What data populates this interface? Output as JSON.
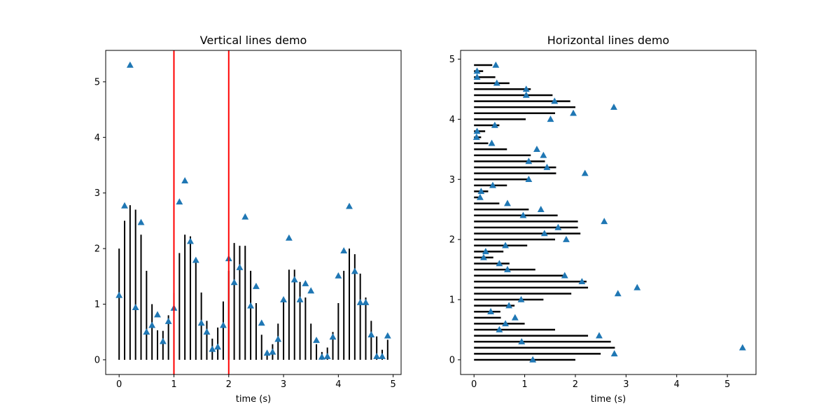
{
  "chart_data": [
    {
      "type": "vlines",
      "title": "Vertical lines demo",
      "xlabel": "time (s)",
      "ylabel": "",
      "xlim": [
        -0.245,
        5.145
      ],
      "ylim": [
        -0.265,
        5.565
      ],
      "xticks": [
        0,
        1,
        2,
        3,
        4,
        5
      ],
      "yticks": [
        0,
        1,
        2,
        3,
        4,
        5
      ],
      "grid": false,
      "colors": {
        "lines": "#000000",
        "markers": "#1f77b4",
        "axvline": "#ff0000"
      },
      "axvlines": [
        1,
        2
      ],
      "series": [
        {
          "kind": "vlines",
          "x": [
            0,
            0.1,
            0.2,
            0.3,
            0.4,
            0.5,
            0.6,
            0.7,
            0.8,
            0.9,
            1.0,
            1.1,
            1.2,
            1.3,
            1.4,
            1.5,
            1.6,
            1.7,
            1.8,
            1.9,
            2.0,
            2.1,
            2.2,
            2.3,
            2.4,
            2.5,
            2.6,
            2.7,
            2.8,
            2.9,
            3.0,
            3.1,
            3.2,
            3.3,
            3.4,
            3.5,
            3.6,
            3.7,
            3.8,
            3.9,
            4.0,
            4.1,
            4.2,
            4.3,
            4.4,
            4.5,
            4.6,
            4.7,
            4.8,
            4.9
          ],
          "ymin": 0,
          "ymax": [
            2.0,
            2.5,
            2.78,
            2.7,
            2.25,
            1.6,
            1.0,
            0.53,
            0.52,
            0.8,
            1.2,
            1.92,
            2.25,
            2.22,
            1.8,
            1.21,
            0.7,
            0.38,
            0.58,
            1.05,
            1.6,
            2.1,
            2.05,
            2.05,
            1.6,
            1.02,
            0.45,
            0.12,
            0.28,
            0.65,
            1.08,
            1.62,
            1.62,
            1.4,
            1.12,
            0.65,
            0.28,
            0.14,
            0.22,
            0.5,
            1.02,
            1.6,
            2.0,
            1.9,
            1.55,
            1.12,
            0.7,
            0.42,
            0.18,
            0.36
          ]
        },
        {
          "kind": "markers",
          "marker": "triangle-up",
          "x": [
            0,
            0.1,
            0.2,
            0.3,
            0.4,
            0.5,
            0.6,
            0.7,
            0.8,
            0.9,
            1.0,
            1.1,
            1.2,
            1.3,
            1.4,
            1.5,
            1.6,
            1.7,
            1.8,
            1.9,
            2.0,
            2.1,
            2.2,
            2.3,
            2.4,
            2.5,
            2.6,
            2.7,
            2.8,
            2.9,
            3.0,
            3.1,
            3.2,
            3.3,
            3.4,
            3.5,
            3.6,
            3.7,
            3.8,
            3.9,
            4.0,
            4.1,
            4.2,
            4.3,
            4.4,
            4.5,
            4.6,
            4.7,
            4.8,
            4.9
          ],
          "y": [
            1.16,
            2.77,
            5.3,
            0.94,
            2.47,
            0.5,
            0.62,
            0.81,
            0.33,
            0.69,
            0.93,
            2.84,
            3.22,
            2.13,
            1.79,
            0.66,
            0.5,
            0.19,
            0.23,
            0.62,
            1.82,
            1.39,
            1.66,
            2.57,
            0.97,
            1.32,
            0.66,
            0.12,
            0.14,
            0.37,
            1.08,
            2.19,
            1.44,
            1.08,
            1.37,
            1.24,
            0.35,
            0.05,
            0.06,
            0.41,
            1.51,
            1.96,
            2.76,
            1.59,
            1.03,
            1.03,
            0.45,
            0.06,
            0.06,
            0.43
          ]
        }
      ]
    },
    {
      "type": "hlines",
      "title": "Horizontal lines demo",
      "xlabel": "time (s)",
      "ylabel": "",
      "xlim": [
        -0.265,
        5.565
      ],
      "ylim": [
        -0.245,
        5.145
      ],
      "xticks": [
        0,
        1,
        2,
        3,
        4,
        5
      ],
      "yticks": [
        0,
        1,
        2,
        3,
        4,
        5
      ],
      "grid": false,
      "colors": {
        "lines": "#000000",
        "markers": "#1f77b4"
      },
      "series": [
        {
          "kind": "hlines",
          "y": [
            0,
            0.1,
            0.2,
            0.3,
            0.4,
            0.5,
            0.6,
            0.7,
            0.8,
            0.9,
            1.0,
            1.1,
            1.2,
            1.3,
            1.4,
            1.5,
            1.6,
            1.7,
            1.8,
            1.9,
            2.0,
            2.1,
            2.2,
            2.3,
            2.4,
            2.5,
            2.6,
            2.7,
            2.8,
            2.9,
            3.0,
            3.1,
            3.2,
            3.3,
            3.4,
            3.5,
            3.6,
            3.7,
            3.8,
            3.9,
            4.0,
            4.1,
            4.2,
            4.3,
            4.4,
            4.5,
            4.6,
            4.7,
            4.8,
            4.9
          ],
          "xmin": 0,
          "xmax": [
            2.0,
            2.5,
            2.78,
            2.7,
            2.25,
            1.6,
            1.0,
            0.53,
            0.52,
            0.8,
            1.37,
            1.92,
            2.25,
            2.22,
            1.8,
            1.21,
            0.7,
            0.38,
            0.58,
            1.05,
            1.6,
            2.1,
            2.05,
            2.05,
            1.65,
            1.08,
            0.5,
            0.12,
            0.28,
            0.65,
            1.08,
            1.62,
            1.62,
            1.4,
            1.12,
            0.65,
            0.28,
            0.14,
            0.22,
            0.5,
            1.02,
            1.6,
            2.0,
            1.9,
            1.55,
            1.12,
            0.7,
            0.42,
            0.18,
            0.36
          ]
        },
        {
          "kind": "markers",
          "marker": "triangle-up",
          "x": [
            1.16,
            2.77,
            5.3,
            0.94,
            2.47,
            0.5,
            0.62,
            0.81,
            0.33,
            0.69,
            0.93,
            2.84,
            3.22,
            2.13,
            1.79,
            0.66,
            0.5,
            0.19,
            0.23,
            0.62,
            1.82,
            1.39,
            1.66,
            2.57,
            0.97,
            1.32,
            0.66,
            0.12,
            0.14,
            0.37,
            1.08,
            2.19,
            1.44,
            1.08,
            1.37,
            1.24,
            0.35,
            0.05,
            0.06,
            0.41,
            1.51,
            1.96,
            2.76,
            1.59,
            1.03,
            1.03,
            0.45,
            0.06,
            0.06,
            0.43
          ],
          "y": [
            0,
            0.1,
            0.2,
            0.3,
            0.4,
            0.5,
            0.6,
            0.7,
            0.8,
            0.9,
            1.0,
            1.1,
            1.2,
            1.3,
            1.4,
            1.5,
            1.6,
            1.7,
            1.8,
            1.9,
            2.0,
            2.1,
            2.2,
            2.3,
            2.4,
            2.5,
            2.6,
            2.7,
            2.8,
            2.9,
            3.0,
            3.1,
            3.2,
            3.3,
            3.4,
            3.5,
            3.6,
            3.7,
            3.8,
            3.9,
            4.0,
            4.1,
            4.2,
            4.3,
            4.4,
            4.5,
            4.6,
            4.7,
            4.8,
            4.9
          ]
        }
      ]
    }
  ]
}
